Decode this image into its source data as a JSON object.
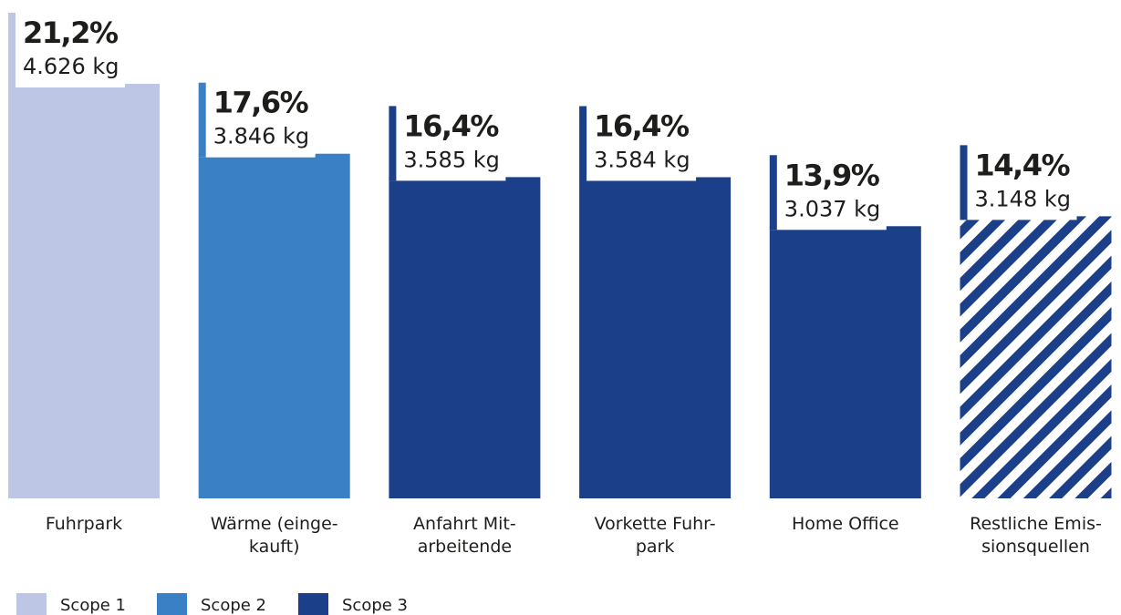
{
  "chart_data": {
    "type": "bar",
    "title": "",
    "xlabel": "",
    "ylabel": "",
    "categories": [
      [
        "Fuhrpark"
      ],
      [
        "Wärme (einge-",
        "kauft)"
      ],
      [
        "Anfahrt Mit-",
        "arbeitende"
      ],
      [
        "Vorkette Fuhr-",
        "park"
      ],
      [
        "Home Office"
      ],
      [
        "Restliche Emis-",
        "sionsquellen"
      ]
    ],
    "values": [
      4626,
      3846,
      3585,
      3584,
      3037,
      3148
    ],
    "percent_labels": [
      "21,2%",
      "17,6%",
      "16,4%",
      "16,4%",
      "13,9%",
      "14,4%"
    ],
    "value_labels": [
      "4.626 kg",
      "3.846 kg",
      "3.585 kg",
      "3.584 kg",
      "3.037 kg",
      "3.148 kg"
    ],
    "scopes": [
      "Scope 1",
      "Scope 2",
      "Scope 3",
      "Scope 3",
      "Scope 3",
      "hatched"
    ],
    "legend": {
      "placement": "bottom-left",
      "items": [
        {
          "label": "Scope 1",
          "color": "#bec6e6"
        },
        {
          "label": "Scope 2",
          "color": "#3a80c4"
        },
        {
          "label": "Scope 3",
          "color": "#1b3f89"
        }
      ]
    },
    "hatch_color": "#1b3f89",
    "grid": false,
    "ylim": [
      0,
      4626
    ]
  }
}
